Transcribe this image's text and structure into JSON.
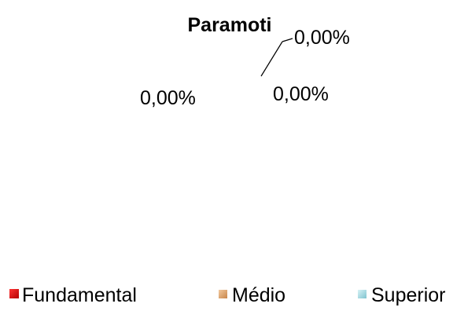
{
  "chart_data": {
    "type": "pie",
    "title": "Paramoti",
    "categories": [
      "Fundamental",
      "Médio",
      "Superior"
    ],
    "values": [
      0,
      0,
      0
    ],
    "data_labels": [
      "0,00%",
      "0,00%",
      "0,00%"
    ],
    "legend": {
      "placement": "bottom",
      "entries": [
        {
          "label": "Fundamental",
          "color": "#cc0000"
        },
        {
          "label": "Médio",
          "color": "#d9a06b"
        },
        {
          "label": "Superior",
          "color": "#9fd7e0"
        }
      ]
    }
  }
}
